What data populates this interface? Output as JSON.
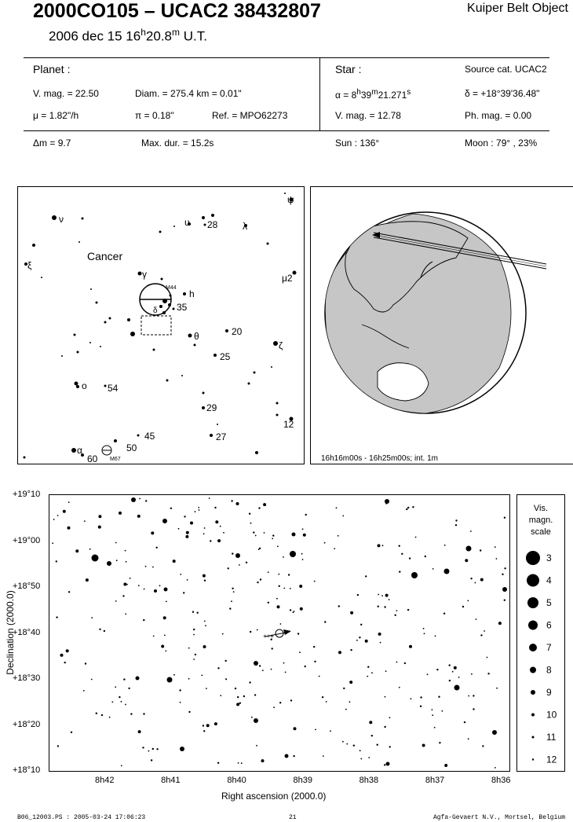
{
  "header": {
    "title": "2000CO105  –  UCAC2 38432807",
    "object_type": "Kuiper Belt Object",
    "date": "2006 dec 15  16h20.8m U.T."
  },
  "planet": {
    "heading": "Planet :",
    "vmag": "V. mag. = 22.50",
    "diam": "Diam. = 275.4 km = 0.01\"",
    "mu": "μ =  1.82\"/h",
    "pi": "π =  0.18\"",
    "ref": "Ref. = MPO62273"
  },
  "star": {
    "heading": "Star :",
    "source": "Source cat.  UCAC2",
    "alpha": "α =  8h39m21.271s",
    "delta": "δ = +18°39'36.48\"",
    "vmag": "V. mag. = 12.78",
    "phmag": "Ph. mag. =  0.00"
  },
  "event": {
    "dm": "Δm = 9.7",
    "maxdur": "Max. dur. = 15.2s",
    "sun": "Sun : 136°",
    "moon": "Moon :  79° , 23%"
  },
  "finder": {
    "constellation": "Cancer",
    "labels": [
      "ν",
      "υ",
      "28",
      "λ",
      "ψ",
      "ξ",
      "μ2",
      "γ",
      "M44",
      "h",
      "35",
      "θ",
      "20",
      "ζ",
      "25",
      "o",
      "54",
      "29",
      "12",
      "45",
      "27",
      "50",
      "α",
      "60",
      "M67",
      "δ"
    ]
  },
  "globe": {
    "caption": "16h16m00s - 16h25m00s; int.  1m"
  },
  "starchart": {
    "dec_ticks": [
      "+19°10",
      "+19°00",
      "+18°50",
      "+18°40",
      "+18°30",
      "+18°20",
      "+18°10"
    ],
    "ra_ticks": [
      "8h42",
      "8h41",
      "8h40",
      "8h39",
      "8h38",
      "8h37",
      "8h36"
    ],
    "xlabel": "Right ascension (2000.0)",
    "ylabel": "Declination (2000.0)"
  },
  "legend": {
    "title_lines": [
      "Vis.",
      "magn.",
      "scale"
    ],
    "mags": [
      "3",
      "4",
      "5",
      "6",
      "7",
      "8",
      "9",
      "10",
      "11",
      "12"
    ]
  },
  "footer": {
    "left": "B06_12003.PS : 2005-03-24 17:06:23",
    "page": "21",
    "right": "Agfa-Gevaert N.V., Mortsel, Belgium"
  }
}
